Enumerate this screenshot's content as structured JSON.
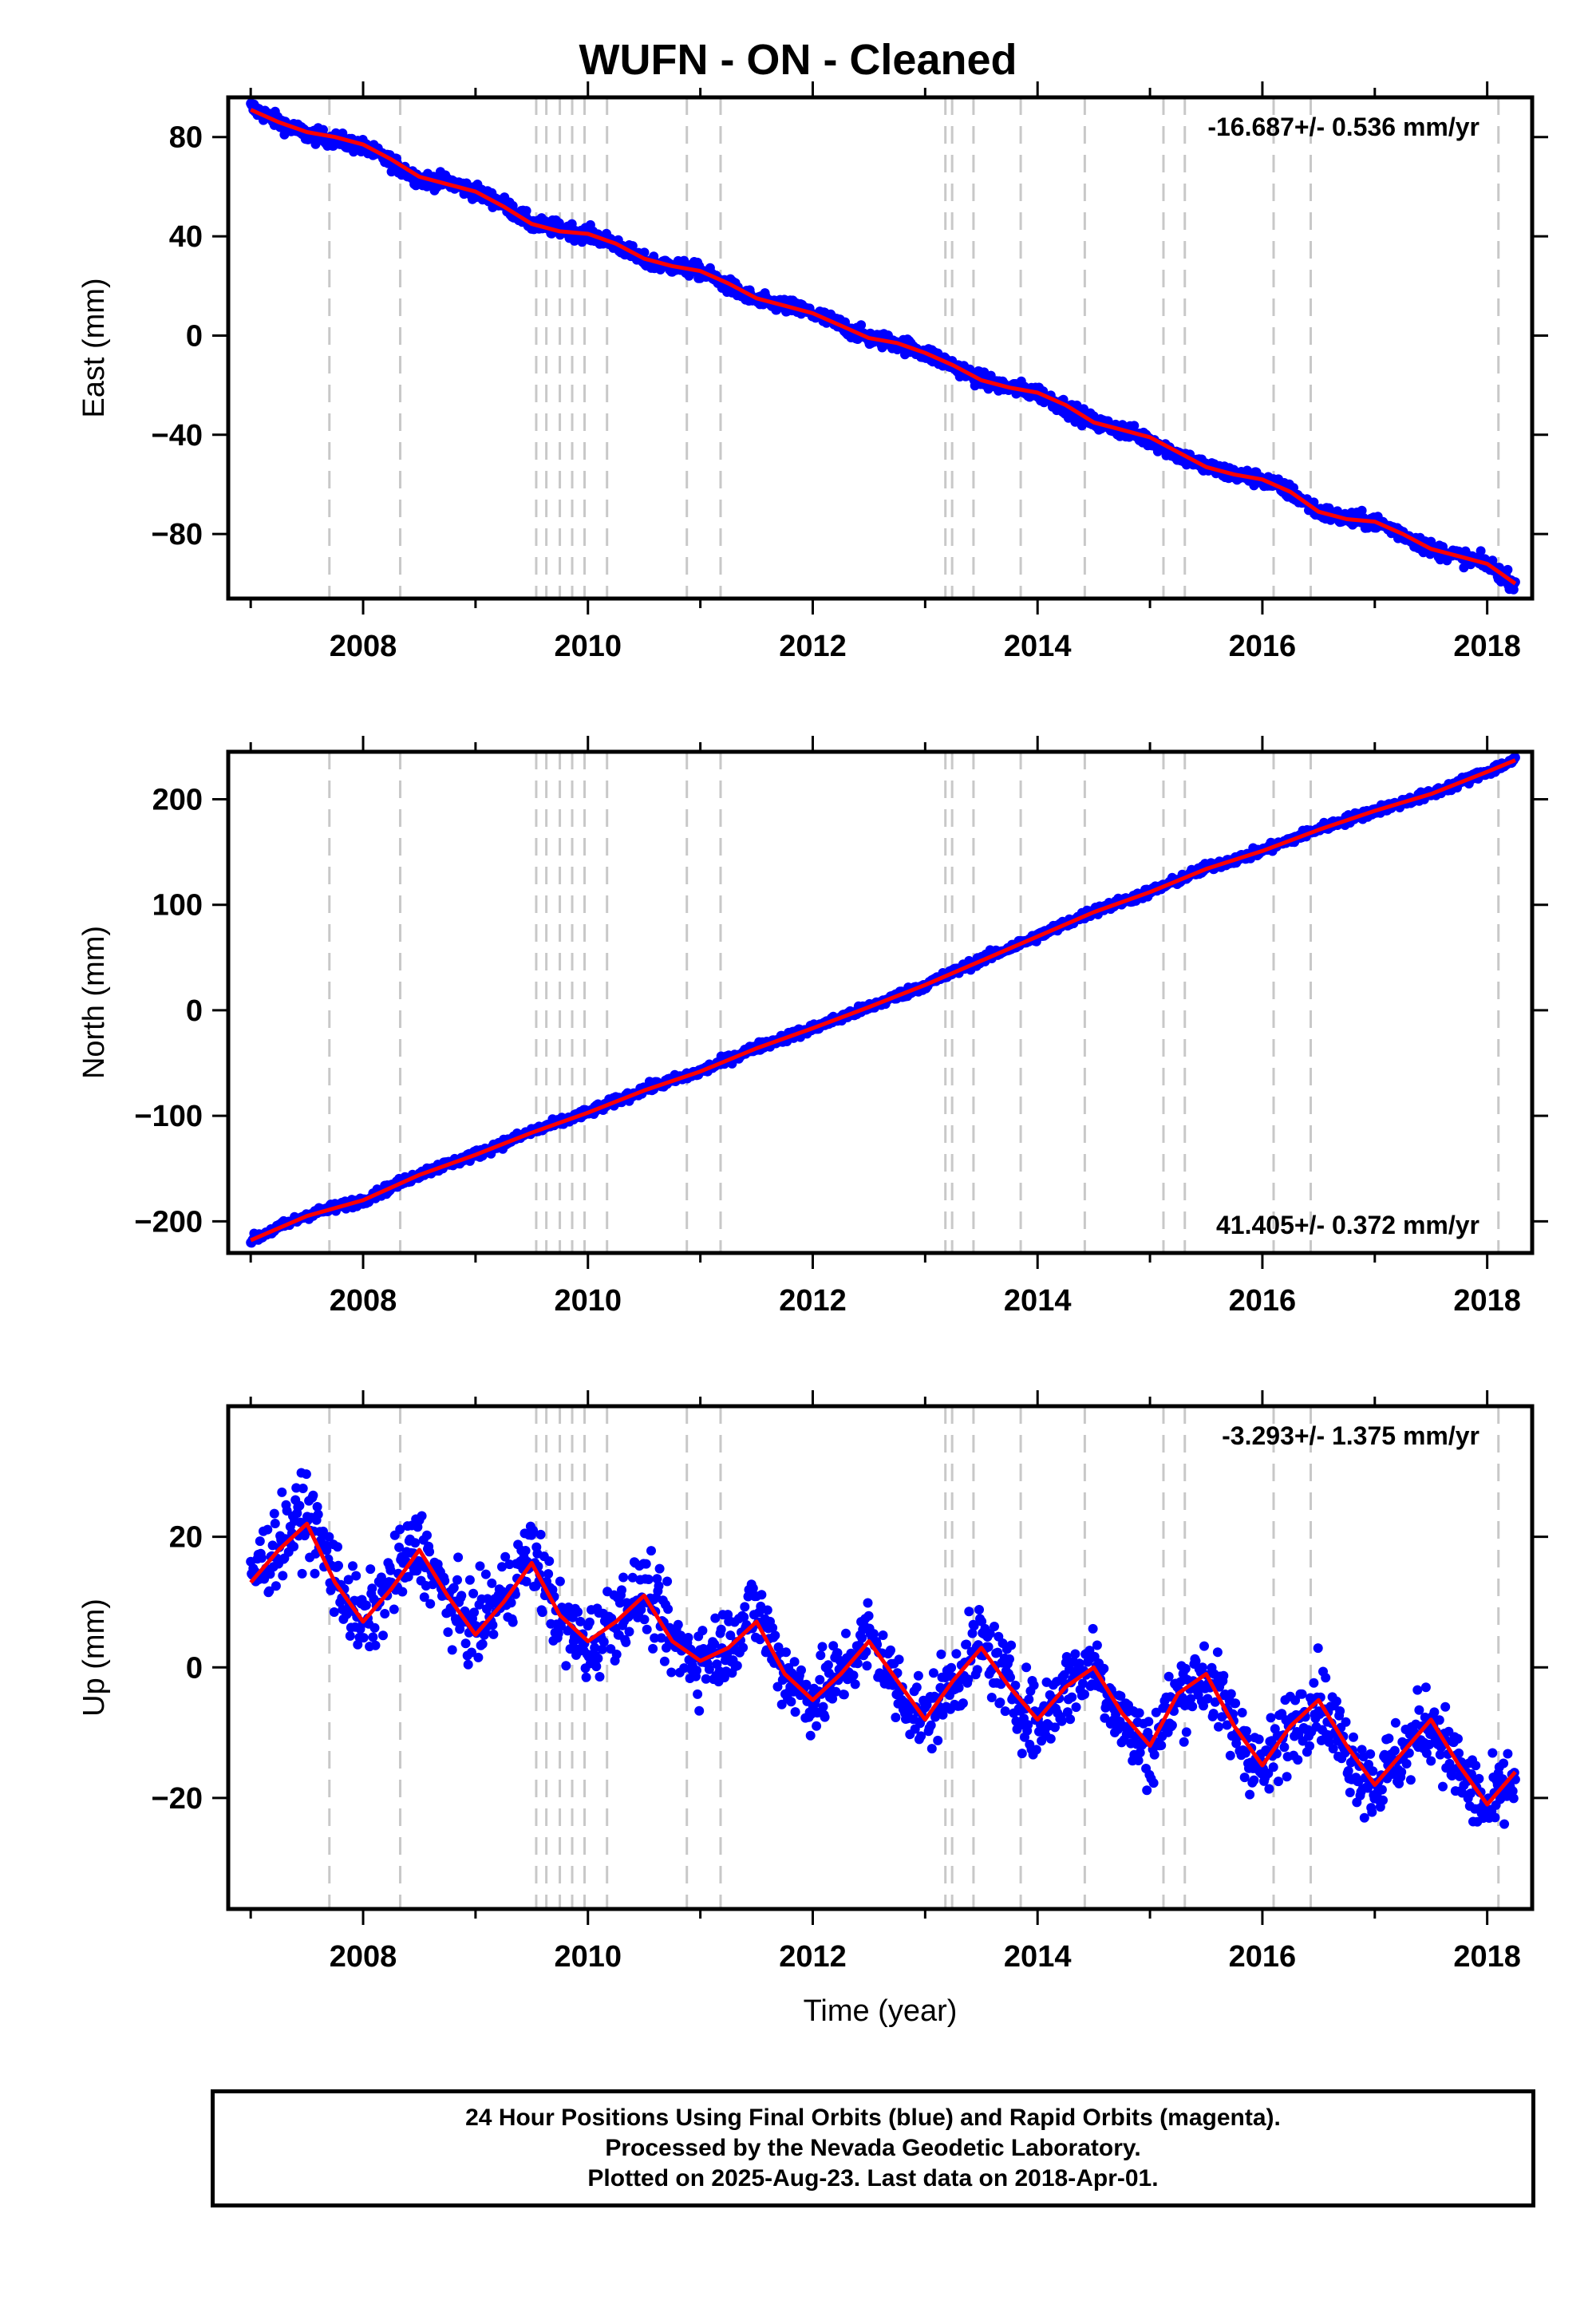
{
  "title": "WUFN  - ON - Cleaned",
  "footer": {
    "line1": "24 Hour Positions Using Final Orbits (blue) and Rapid Orbits (magenta).",
    "line2": "Processed by the Nevada Geodetic Laboratory.",
    "line3": "Plotted on 2025-Aug-23. Last data on 2018-Apr-01."
  },
  "colors": {
    "points": "#0000ff",
    "fit": "#ff0000",
    "breaks": "#c8c8c8",
    "axis": "#000000"
  },
  "chart_data": [
    {
      "type": "scatter",
      "title": "",
      "xlabel": "",
      "ylabel": "East (mm)",
      "xlim": [
        2006.8,
        2018.4
      ],
      "ylim": [
        -106,
        96
      ],
      "xticks": [
        "2008",
        "2010",
        "2012",
        "2014",
        "2016",
        "2018"
      ],
      "yticks": [
        "80",
        "40",
        "0",
        "−40",
        "−80"
      ],
      "rate_label": "-16.687+/- 0.536 mm/yr",
      "rate_position": "top-right",
      "grid": false,
      "break_lines": [
        2007.7,
        2008.33,
        2009.54,
        2009.63,
        2009.75,
        2009.86,
        2009.97,
        2010.17,
        2010.88,
        2011.18,
        2013.18,
        2013.24,
        2013.43,
        2013.85,
        2014.42,
        2015.12,
        2015.31,
        2016.1,
        2016.43,
        2018.1
      ],
      "series": [
        {
          "name": "daily positions",
          "x": [
            2007.0,
            2007.25,
            2007.5,
            2007.75,
            2008.0,
            2008.25,
            2008.5,
            2008.75,
            2009.0,
            2009.25,
            2009.5,
            2009.75,
            2010.0,
            2010.25,
            2010.5,
            2010.75,
            2011.0,
            2011.25,
            2011.5,
            2011.75,
            2012.0,
            2012.25,
            2012.5,
            2012.75,
            2013.0,
            2013.25,
            2013.5,
            2013.75,
            2014.0,
            2014.25,
            2014.5,
            2014.75,
            2015.0,
            2015.25,
            2015.5,
            2015.75,
            2016.0,
            2016.25,
            2016.5,
            2016.75,
            2017.0,
            2017.25,
            2017.5,
            2017.75,
            2018.0,
            2018.25
          ],
          "y": [
            92,
            86,
            81,
            79,
            76,
            70,
            63,
            62,
            58,
            53,
            45,
            43,
            41,
            37,
            30,
            28,
            26,
            20,
            14,
            12,
            9,
            4,
            -1,
            -3,
            -7,
            -12,
            -18,
            -21,
            -23,
            -29,
            -35,
            -38,
            -42,
            -48,
            -53,
            -56,
            -58,
            -63,
            -71,
            -74,
            -75,
            -80,
            -86,
            -89,
            -92,
            -100
          ]
        },
        {
          "name": "fit",
          "x": [
            2007.0,
            2007.25,
            2007.5,
            2007.75,
            2008.0,
            2008.25,
            2008.5,
            2008.75,
            2009.0,
            2009.25,
            2009.5,
            2009.75,
            2010.0,
            2010.25,
            2010.5,
            2010.75,
            2011.0,
            2011.25,
            2011.5,
            2011.75,
            2012.0,
            2012.25,
            2012.5,
            2012.75,
            2013.0,
            2013.25,
            2013.5,
            2013.75,
            2014.0,
            2014.25,
            2014.5,
            2014.75,
            2015.0,
            2015.25,
            2015.5,
            2015.75,
            2016.0,
            2016.25,
            2016.5,
            2016.75,
            2017.0,
            2017.25,
            2017.5,
            2017.75,
            2018.0,
            2018.25
          ],
          "y": [
            91,
            86,
            82,
            80,
            77,
            71,
            64,
            61,
            58,
            52,
            45,
            42,
            41,
            37,
            31,
            28,
            26,
            21,
            15,
            12,
            9,
            4,
            -1,
            -3,
            -7,
            -12,
            -18,
            -21,
            -23,
            -28,
            -35,
            -38,
            -41,
            -47,
            -53,
            -56,
            -58,
            -63,
            -71,
            -74,
            -75,
            -80,
            -86,
            -89,
            -92,
            -100
          ]
        }
      ]
    },
    {
      "type": "scatter",
      "title": "",
      "xlabel": "",
      "ylabel": "North (mm)",
      "xlim": [
        2006.8,
        2018.4
      ],
      "ylim": [
        -230,
        245
      ],
      "xticks": [
        "2008",
        "2010",
        "2012",
        "2014",
        "2016",
        "2018"
      ],
      "yticks": [
        "200",
        "100",
        "0",
        "−100",
        "−200"
      ],
      "rate_label": "41.405+/- 0.372 mm/yr",
      "rate_position": "bottom-right",
      "grid": false,
      "break_lines": [
        2007.7,
        2008.33,
        2009.54,
        2009.63,
        2009.75,
        2009.86,
        2009.97,
        2010.17,
        2010.88,
        2011.18,
        2013.18,
        2013.24,
        2013.43,
        2013.85,
        2014.42,
        2015.12,
        2015.31,
        2016.1,
        2016.43,
        2018.1
      ],
      "series": [
        {
          "name": "daily positions",
          "x": [
            2007.0,
            2007.5,
            2008.0,
            2008.5,
            2009.0,
            2009.5,
            2010.0,
            2010.5,
            2011.0,
            2011.5,
            2012.0,
            2012.5,
            2013.0,
            2013.5,
            2014.0,
            2014.5,
            2015.0,
            2015.5,
            2016.0,
            2016.5,
            2017.0,
            2017.5,
            2018.0,
            2018.25
          ],
          "y": [
            -218,
            -194,
            -180,
            -155,
            -137,
            -115,
            -97,
            -75,
            -58,
            -35,
            -17,
            3,
            24,
            48,
            70,
            94,
            112,
            135,
            151,
            172,
            189,
            205,
            226,
            237
          ]
        },
        {
          "name": "fit",
          "x": [
            2007.0,
            2007.5,
            2008.0,
            2008.5,
            2009.0,
            2009.5,
            2010.0,
            2010.5,
            2011.0,
            2011.5,
            2012.0,
            2012.5,
            2013.0,
            2013.5,
            2014.0,
            2014.5,
            2015.0,
            2015.5,
            2016.0,
            2016.5,
            2017.0,
            2017.5,
            2018.0,
            2018.25
          ],
          "y": [
            -218,
            -195,
            -180,
            -156,
            -137,
            -116,
            -97,
            -76,
            -58,
            -36,
            -17,
            3,
            24,
            47,
            70,
            93,
            112,
            134,
            151,
            171,
            189,
            205,
            226,
            237
          ]
        }
      ]
    },
    {
      "type": "scatter",
      "title": "",
      "xlabel": "Time (year)",
      "ylabel": "Up (mm)",
      "xlim": [
        2006.8,
        2018.4
      ],
      "ylim": [
        -37,
        40
      ],
      "xticks": [
        "2008",
        "2010",
        "2012",
        "2014",
        "2016",
        "2018"
      ],
      "yticks": [
        "20",
        "0",
        "−20"
      ],
      "rate_label": "-3.293+/- 1.375 mm/yr",
      "rate_position": "top-right",
      "grid": false,
      "break_lines": [
        2007.7,
        2008.33,
        2009.54,
        2009.63,
        2009.75,
        2009.86,
        2009.97,
        2010.17,
        2010.88,
        2011.18,
        2013.18,
        2013.24,
        2013.43,
        2013.85,
        2014.42,
        2015.12,
        2015.31,
        2016.1,
        2016.43,
        2018.1
      ],
      "series": [
        {
          "name": "daily positions",
          "x": [
            2007.0,
            2007.25,
            2007.5,
            2007.75,
            2008.0,
            2008.25,
            2008.5,
            2008.75,
            2009.0,
            2009.25,
            2009.5,
            2009.75,
            2010.0,
            2010.25,
            2010.5,
            2010.75,
            2011.0,
            2011.25,
            2011.5,
            2011.75,
            2012.0,
            2012.25,
            2012.5,
            2012.75,
            2013.0,
            2013.25,
            2013.5,
            2013.75,
            2014.0,
            2014.25,
            2014.5,
            2014.75,
            2015.0,
            2015.25,
            2015.5,
            2015.75,
            2016.0,
            2016.25,
            2016.5,
            2016.75,
            2017.0,
            2017.25,
            2017.5,
            2017.75,
            2018.0,
            2018.25
          ],
          "y": [
            14,
            19,
            24,
            14,
            6,
            13,
            19,
            10,
            6,
            11,
            18,
            7,
            3,
            8,
            12,
            4,
            1,
            4,
            9,
            -1,
            -5,
            -1,
            5,
            -3,
            -8,
            -2,
            4,
            -3,
            -9,
            -3,
            1,
            -8,
            -13,
            -4,
            -1,
            -9,
            -16,
            -9,
            -4,
            -13,
            -18,
            -13,
            -8,
            -16,
            -22,
            -17
          ]
        },
        {
          "name": "fit",
          "x": [
            2007.0,
            2007.25,
            2007.5,
            2007.75,
            2008.0,
            2008.25,
            2008.5,
            2008.75,
            2009.0,
            2009.25,
            2009.5,
            2009.75,
            2010.0,
            2010.25,
            2010.5,
            2010.75,
            2011.0,
            2011.25,
            2011.5,
            2011.75,
            2012.0,
            2012.25,
            2012.5,
            2012.75,
            2013.0,
            2013.25,
            2013.5,
            2013.75,
            2014.0,
            2014.25,
            2014.5,
            2014.75,
            2015.0,
            2015.25,
            2015.5,
            2015.75,
            2016.0,
            2016.25,
            2016.5,
            2016.75,
            2017.0,
            2017.25,
            2017.5,
            2017.75,
            2018.0,
            2018.25
          ],
          "y": [
            13,
            18,
            22,
            13,
            7,
            12,
            18,
            11,
            5,
            10,
            16,
            8,
            4,
            7,
            11,
            4,
            1,
            3,
            7,
            -1,
            -5,
            -1,
            4,
            -2,
            -8,
            -2,
            3,
            -3,
            -8,
            -3,
            0,
            -7,
            -12,
            -4,
            -1,
            -9,
            -15,
            -9,
            -5,
            -12,
            -18,
            -13,
            -8,
            -15,
            -21,
            -16
          ]
        }
      ]
    }
  ]
}
